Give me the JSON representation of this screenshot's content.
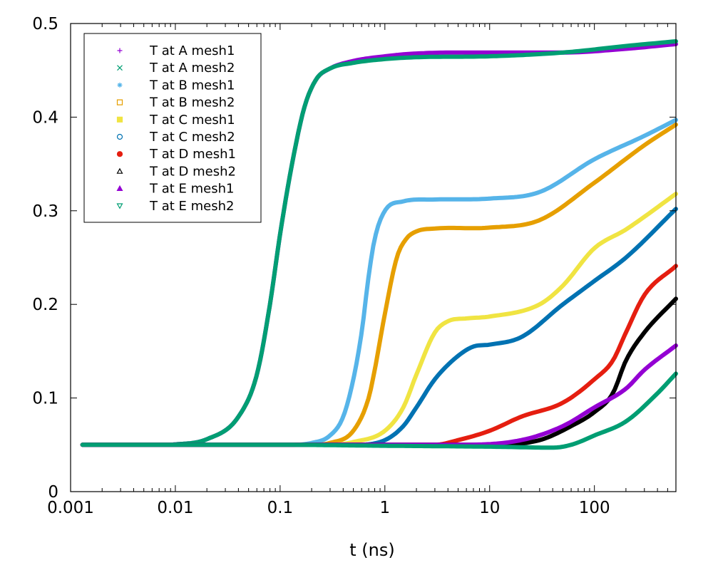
{
  "chart_data": {
    "type": "scatter",
    "title": "",
    "xlabel": "t (ns)",
    "ylabel": "",
    "xscale": "log",
    "xlim": [
      0.001,
      600
    ],
    "ylim": [
      0,
      0.5
    ],
    "x_ticks": [
      0.001,
      0.01,
      0.1,
      1,
      10,
      100
    ],
    "x_tick_labels": [
      "0.001",
      "0.01",
      "0.1",
      "1",
      "10",
      "100"
    ],
    "y_ticks": [
      0,
      0.1,
      0.2,
      0.3,
      0.4,
      0.5
    ],
    "y_tick_labels": [
      "0",
      "0.1",
      "0.2",
      "0.3",
      "0.4",
      "0.5"
    ],
    "legend_position": "top-left",
    "series": [
      {
        "name": "T at A mesh1",
        "color": "#9400d3",
        "marker": "plus",
        "points": [
          [
            0.0013,
            0.05
          ],
          [
            0.005,
            0.05
          ],
          [
            0.01,
            0.0505
          ],
          [
            0.02,
            0.056
          ],
          [
            0.04,
            0.08
          ],
          [
            0.06,
            0.125
          ],
          [
            0.08,
            0.2
          ],
          [
            0.1,
            0.275
          ],
          [
            0.13,
            0.35
          ],
          [
            0.17,
            0.41
          ],
          [
            0.22,
            0.44
          ],
          [
            0.3,
            0.452
          ],
          [
            0.5,
            0.46
          ],
          [
            1,
            0.465
          ],
          [
            2,
            0.468
          ],
          [
            10,
            0.469
          ],
          [
            50,
            0.469
          ],
          [
            200,
            0.473
          ],
          [
            600,
            0.478
          ]
        ]
      },
      {
        "name": "T at A mesh2",
        "color": "#009e73",
        "marker": "cross",
        "points": [
          [
            0.0013,
            0.05
          ],
          [
            0.005,
            0.05
          ],
          [
            0.01,
            0.0505
          ],
          [
            0.02,
            0.056
          ],
          [
            0.04,
            0.08
          ],
          [
            0.06,
            0.125
          ],
          [
            0.08,
            0.2
          ],
          [
            0.1,
            0.275
          ],
          [
            0.13,
            0.35
          ],
          [
            0.17,
            0.41
          ],
          [
            0.22,
            0.44
          ],
          [
            0.3,
            0.452
          ],
          [
            0.5,
            0.458
          ],
          [
            1,
            0.462
          ],
          [
            2,
            0.464
          ],
          [
            10,
            0.465
          ],
          [
            50,
            0.469
          ],
          [
            200,
            0.476
          ],
          [
            600,
            0.481
          ]
        ]
      },
      {
        "name": "T at B mesh1",
        "color": "#56b4e9",
        "marker": "star",
        "points": [
          [
            0.0013,
            0.05
          ],
          [
            0.1,
            0.05
          ],
          [
            0.2,
            0.052
          ],
          [
            0.3,
            0.06
          ],
          [
            0.4,
            0.08
          ],
          [
            0.5,
            0.12
          ],
          [
            0.6,
            0.17
          ],
          [
            0.7,
            0.23
          ],
          [
            0.8,
            0.27
          ],
          [
            1,
            0.3
          ],
          [
            1.5,
            0.31
          ],
          [
            3,
            0.312
          ],
          [
            10,
            0.313
          ],
          [
            30,
            0.32
          ],
          [
            100,
            0.355
          ],
          [
            300,
            0.38
          ],
          [
            600,
            0.397
          ]
        ]
      },
      {
        "name": "T at B mesh2",
        "color": "#e69f00",
        "marker": "square-open",
        "points": [
          [
            0.0013,
            0.05
          ],
          [
            0.2,
            0.05
          ],
          [
            0.3,
            0.052
          ],
          [
            0.5,
            0.065
          ],
          [
            0.7,
            0.1
          ],
          [
            0.8,
            0.13
          ],
          [
            1,
            0.19
          ],
          [
            1.3,
            0.25
          ],
          [
            1.6,
            0.27
          ],
          [
            2,
            0.278
          ],
          [
            3,
            0.281
          ],
          [
            10,
            0.282
          ],
          [
            30,
            0.29
          ],
          [
            100,
            0.33
          ],
          [
            300,
            0.37
          ],
          [
            600,
            0.392
          ]
        ]
      },
      {
        "name": "T at C mesh1",
        "color": "#f0e442",
        "marker": "square-filled",
        "points": [
          [
            0.0013,
            0.05
          ],
          [
            0.3,
            0.05
          ],
          [
            0.5,
            0.053
          ],
          [
            1,
            0.065
          ],
          [
            1.5,
            0.09
          ],
          [
            2,
            0.125
          ],
          [
            3,
            0.17
          ],
          [
            4,
            0.182
          ],
          [
            6,
            0.185
          ],
          [
            10,
            0.187
          ],
          [
            30,
            0.2
          ],
          [
            50,
            0.22
          ],
          [
            100,
            0.26
          ],
          [
            200,
            0.28
          ],
          [
            600,
            0.318
          ]
        ]
      },
      {
        "name": "T at C mesh2",
        "color": "#0072b2",
        "marker": "circle-open",
        "points": [
          [
            0.0013,
            0.05
          ],
          [
            0.5,
            0.05
          ],
          [
            1,
            0.055
          ],
          [
            1.5,
            0.07
          ],
          [
            2,
            0.09
          ],
          [
            3,
            0.12
          ],
          [
            5,
            0.145
          ],
          [
            7,
            0.155
          ],
          [
            10,
            0.157
          ],
          [
            20,
            0.165
          ],
          [
            50,
            0.2
          ],
          [
            100,
            0.225
          ],
          [
            200,
            0.25
          ],
          [
            600,
            0.302
          ]
        ]
      },
      {
        "name": "T at D mesh1",
        "color": "#e51e10",
        "marker": "circle-filled",
        "points": [
          [
            0.0013,
            0.05
          ],
          [
            3,
            0.05
          ],
          [
            5,
            0.055
          ],
          [
            10,
            0.065
          ],
          [
            20,
            0.08
          ],
          [
            50,
            0.095
          ],
          [
            100,
            0.12
          ],
          [
            150,
            0.14
          ],
          [
            200,
            0.17
          ],
          [
            300,
            0.21
          ],
          [
            600,
            0.241
          ]
        ]
      },
      {
        "name": "T at D mesh2",
        "color": "#000000",
        "marker": "triangle-open",
        "points": [
          [
            0.0013,
            0.05
          ],
          [
            10,
            0.05
          ],
          [
            30,
            0.055
          ],
          [
            60,
            0.07
          ],
          [
            100,
            0.085
          ],
          [
            150,
            0.105
          ],
          [
            200,
            0.14
          ],
          [
            300,
            0.17
          ],
          [
            600,
            0.206
          ]
        ]
      },
      {
        "name": "T at E mesh1",
        "color": "#9400d3",
        "marker": "triangle-filled",
        "points": [
          [
            0.0013,
            0.05
          ],
          [
            5,
            0.05
          ],
          [
            20,
            0.055
          ],
          [
            50,
            0.07
          ],
          [
            100,
            0.09
          ],
          [
            200,
            0.11
          ],
          [
            300,
            0.13
          ],
          [
            600,
            0.156
          ]
        ]
      },
      {
        "name": "T at E mesh2",
        "color": "#009e73",
        "marker": "triangle-down-open",
        "points": [
          [
            0.0013,
            0.05
          ],
          [
            0.1,
            0.05
          ],
          [
            1,
            0.049
          ],
          [
            10,
            0.048
          ],
          [
            40,
            0.047
          ],
          [
            60,
            0.05
          ],
          [
            100,
            0.06
          ],
          [
            200,
            0.075
          ],
          [
            400,
            0.105
          ],
          [
            600,
            0.126
          ]
        ]
      }
    ]
  }
}
